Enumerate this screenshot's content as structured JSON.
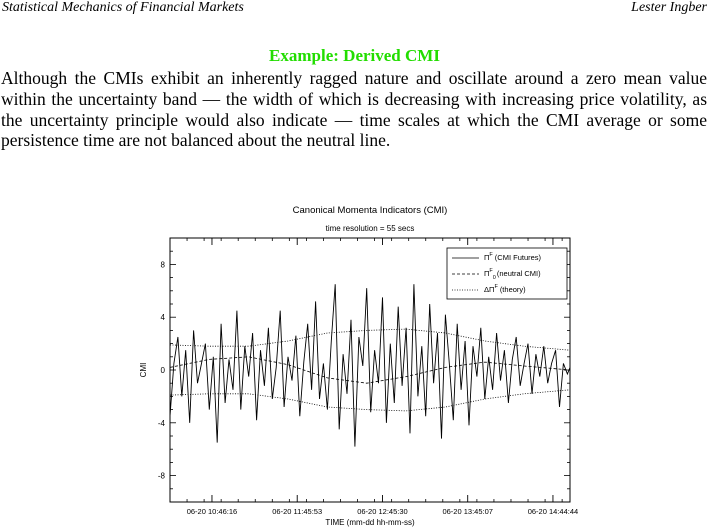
{
  "header": {
    "left": "Statistical Mechanics of Financial Markets",
    "right": "Lester Ingber"
  },
  "slide": {
    "title": "Example: Derived CMI",
    "body": "Although the CMIs exhibit an inherently ragged nature and oscillate around a zero mean value within the uncertainty band — the width of which is decreasing with increasing price volatility, as the uncertainty principle would also indicate — time scales at which the CMI average or some persistence time are not balanced about the neutral line."
  },
  "colors": {
    "title": "#22dd00",
    "text": "#000000"
  },
  "chart_data": {
    "type": "line",
    "title": "Canonical Momenta Indicators (CMI)",
    "subtitle": "time resolution = 55 secs",
    "xlabel": "TIME (mm-dd hh-mm-ss)",
    "ylabel": "CMI",
    "ylim": [
      -10,
      10
    ],
    "y_ticks": [
      -8,
      -4,
      0,
      4,
      8
    ],
    "x_tick_labels": [
      "06-20 10:46:16",
      "06-20 11:45:53",
      "06-20 12:45:30",
      "06-20 13:45:07",
      "06-20 14:44:44"
    ],
    "x_tick_positions": [
      32,
      97,
      162,
      227,
      292
    ],
    "xlim": [
      0,
      305
    ],
    "legend": {
      "placement": "top-right",
      "entries": [
        {
          "symbol": "Π",
          "sup": "F",
          "sub": "",
          "label": "(CMI Futures)",
          "style": "solid"
        },
        {
          "symbol": "Π",
          "sup": "F",
          "sub": "0",
          "label": "(neutral CMI)",
          "style": "dashed"
        },
        {
          "symbol": "ΔΠ",
          "sup": "F",
          "sub": "",
          "label": "(theory)",
          "style": "dotted"
        }
      ]
    },
    "series": [
      {
        "name": "CMI Futures",
        "style": "solid",
        "x": [
          0,
          3,
          6,
          9,
          12,
          15,
          18,
          21,
          24,
          27,
          30,
          33,
          36,
          39,
          42,
          45,
          48,
          51,
          54,
          57,
          60,
          63,
          66,
          69,
          72,
          75,
          78,
          81,
          84,
          87,
          90,
          93,
          96,
          99,
          102,
          105,
          108,
          111,
          114,
          117,
          120,
          123,
          126,
          129,
          132,
          135,
          138,
          141,
          144,
          147,
          150,
          153,
          156,
          159,
          162,
          165,
          168,
          171,
          174,
          177,
          180,
          183,
          186,
          189,
          192,
          195,
          198,
          201,
          204,
          207,
          210,
          213,
          216,
          219,
          222,
          225,
          228,
          231,
          234,
          237,
          240,
          243,
          246,
          249,
          252,
          255,
          258,
          261,
          264,
          267,
          270,
          273,
          276,
          279,
          282,
          285,
          288,
          291,
          294,
          297,
          300,
          303,
          305
        ],
        "y": [
          -3.5,
          0.5,
          2.5,
          -2.0,
          1.5,
          -4.0,
          3.0,
          -1.0,
          0.5,
          2.0,
          -3.0,
          1.0,
          -5.5,
          3.5,
          -2.5,
          0.8,
          -1.5,
          4.5,
          -3.0,
          1.8,
          -0.5,
          2.8,
          -3.8,
          1.5,
          -1.2,
          3.2,
          -2.2,
          0.2,
          4.5,
          -2.8,
          1.0,
          -0.8,
          2.6,
          -3.5,
          0.6,
          3.5,
          -1.5,
          5.2,
          -2.2,
          0.5,
          -3.0,
          2.2,
          6.5,
          -4.5,
          1.2,
          -1.8,
          3.8,
          -5.8,
          2.5,
          0.3,
          6.2,
          -3.2,
          1.5,
          -1.0,
          5.5,
          -4.0,
          2.0,
          -2.5,
          4.8,
          -1.2,
          3.2,
          -4.8,
          6.5,
          -2.0,
          1.8,
          -3.5,
          5.0,
          -1.0,
          2.8,
          -5.2,
          4.2,
          0.5,
          -3.8,
          3.5,
          -1.5,
          2.2,
          -4.2,
          1.8,
          -0.5,
          3.2,
          -2.2,
          1.0,
          -1.5,
          2.8,
          -0.8,
          1.5,
          -2.5,
          0.8,
          2.5,
          -1.2,
          0.5,
          2.0,
          -1.8,
          1.2,
          -0.5,
          1.8,
          -1.0,
          0.5,
          1.5,
          -2.8,
          0.5,
          -0.3,
          0.2
        ]
      },
      {
        "name": "neutral CMI",
        "style": "dashed",
        "x": [
          0,
          30,
          60,
          90,
          120,
          150,
          180,
          210,
          240,
          270,
          305
        ],
        "y": [
          0.2,
          0.8,
          1.0,
          0.4,
          -0.6,
          -1.0,
          -0.5,
          0.2,
          0.6,
          0.3,
          0.0
        ]
      },
      {
        "name": "theory upper",
        "style": "dotted",
        "x": [
          0,
          30,
          60,
          90,
          120,
          150,
          180,
          210,
          240,
          270,
          305
        ],
        "y": [
          1.9,
          1.8,
          1.8,
          2.2,
          2.8,
          3.0,
          3.1,
          2.8,
          2.2,
          1.8,
          1.5
        ]
      },
      {
        "name": "theory lower",
        "style": "dotted",
        "x": [
          0,
          30,
          60,
          90,
          120,
          150,
          180,
          210,
          240,
          270,
          305
        ],
        "y": [
          -1.9,
          -1.8,
          -1.8,
          -2.2,
          -2.8,
          -3.0,
          -3.1,
          -2.8,
          -2.2,
          -1.8,
          -1.5
        ]
      }
    ]
  }
}
